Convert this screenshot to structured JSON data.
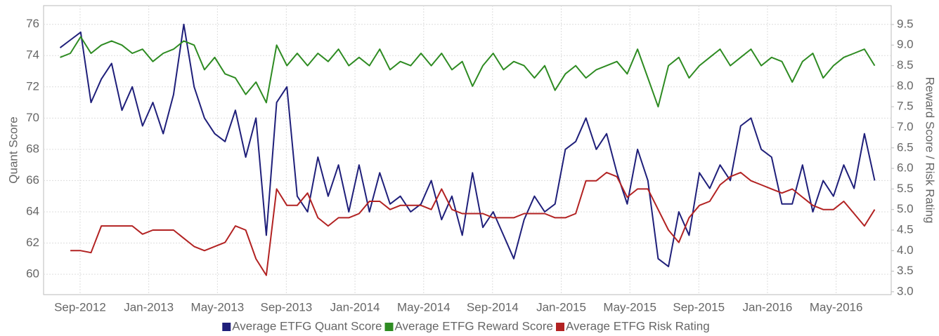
{
  "chart_data": {
    "type": "line",
    "y_label": "Quant Score",
    "y2_label": "Reward Score / Risk Rating",
    "xlim": [
      2012.49,
      2016.6
    ],
    "xticks": [
      {
        "value": 2012.667,
        "label": "Sep-2012"
      },
      {
        "value": 2013.0,
        "label": "Jan-2013"
      },
      {
        "value": 2013.333,
        "label": "May-2013"
      },
      {
        "value": 2013.667,
        "label": "Sep-2013"
      },
      {
        "value": 2014.0,
        "label": "Jan-2014"
      },
      {
        "value": 2014.333,
        "label": "May-2014"
      },
      {
        "value": 2014.667,
        "label": "Sep-2014"
      },
      {
        "value": 2015.0,
        "label": "Jan-2015"
      },
      {
        "value": 2015.333,
        "label": "May-2015"
      },
      {
        "value": 2015.667,
        "label": "Sep-2015"
      },
      {
        "value": 2016.0,
        "label": "Jan-2016"
      },
      {
        "value": 2016.333,
        "label": "May-2016"
      }
    ],
    "ylim": [
      58.7,
      77.2
    ],
    "yticks": [
      60,
      62,
      64,
      66,
      68,
      70,
      72,
      74,
      76
    ],
    "y2lim": [
      2.93,
      9.96
    ],
    "y2ticks": [
      {
        "value": 3,
        "label": "3.0"
      },
      3.5,
      {
        "value": 4,
        "label": "4.0"
      },
      4.5,
      {
        "value": 5,
        "label": "5.0"
      },
      5.5,
      {
        "value": 6,
        "label": "6.0"
      },
      6.5,
      {
        "value": 7,
        "label": "7.0"
      },
      7.5,
      {
        "value": 8,
        "label": "8.0"
      },
      8.5,
      {
        "value": 9,
        "label": "9.0"
      },
      9.5
    ],
    "grid": true,
    "legend": "bottom",
    "x": [
      2012.57,
      2012.62,
      2012.67,
      2012.72,
      2012.77,
      2012.82,
      2012.87,
      2012.92,
      2012.97,
      2013.02,
      2013.07,
      2013.12,
      2013.17,
      2013.22,
      2013.27,
      2013.32,
      2013.37,
      2013.42,
      2013.47,
      2013.52,
      2013.57,
      2013.62,
      2013.67,
      2013.72,
      2013.77,
      2013.82,
      2013.87,
      2013.92,
      2013.97,
      2014.02,
      2014.07,
      2014.12,
      2014.17,
      2014.22,
      2014.27,
      2014.32,
      2014.37,
      2014.42,
      2014.47,
      2014.52,
      2014.57,
      2014.62,
      2014.67,
      2014.72,
      2014.77,
      2014.82,
      2014.87,
      2014.92,
      2014.97,
      2015.02,
      2015.07,
      2015.12,
      2015.17,
      2015.22,
      2015.27,
      2015.32,
      2015.37,
      2015.42,
      2015.47,
      2015.52,
      2015.57,
      2015.62,
      2015.67,
      2015.72,
      2015.77,
      2015.82,
      2015.87,
      2015.92,
      2015.97,
      2016.02,
      2016.07,
      2016.12,
      2016.17,
      2016.22,
      2016.27,
      2016.32,
      2016.37,
      2016.42,
      2016.47,
      2016.52
    ],
    "series": [
      {
        "name": "Average ETFG Quant Score",
        "color": "#1f1f7a",
        "axis": "y",
        "values": [
          74.5,
          75,
          75.5,
          71,
          72.5,
          73.5,
          70.5,
          72,
          69.5,
          71,
          69,
          71.5,
          76,
          72,
          70,
          69,
          68.5,
          70.5,
          67.5,
          70,
          62.5,
          71,
          72,
          65,
          64,
          67.5,
          65,
          67,
          64,
          67,
          64,
          66.5,
          64.5,
          65,
          64,
          64.5,
          66,
          63.5,
          65,
          62.5,
          66.5,
          63,
          64,
          62.5,
          61,
          63.5,
          65,
          64,
          64.5,
          68,
          68.5,
          70,
          68,
          69,
          66.5,
          64.5,
          68,
          66,
          61,
          60.5,
          64,
          62.5,
          66.5,
          65.5,
          67,
          66,
          69.5,
          70,
          68,
          67.5,
          64.5,
          64.5,
          67,
          64,
          66,
          65,
          67,
          65.5,
          69,
          66
        ]
      },
      {
        "name": "Average ETFG Reward Score",
        "color": "#2e8b22",
        "axis": "y2",
        "values": [
          8.7,
          8.8,
          9.2,
          8.8,
          9.0,
          9.1,
          9.0,
          8.8,
          8.9,
          8.6,
          8.8,
          8.9,
          9.1,
          9.0,
          8.4,
          8.7,
          8.3,
          8.2,
          7.8,
          8.1,
          7.6,
          9.0,
          8.5,
          8.8,
          8.5,
          8.8,
          8.6,
          8.9,
          8.5,
          8.7,
          8.5,
          8.9,
          8.4,
          8.6,
          8.5,
          8.8,
          8.5,
          8.8,
          8.4,
          8.6,
          8.0,
          8.5,
          8.8,
          8.4,
          8.6,
          8.5,
          8.2,
          8.5,
          7.9,
          8.3,
          8.5,
          8.2,
          8.4,
          8.5,
          8.6,
          8.3,
          8.9,
          8.2,
          7.5,
          8.5,
          8.7,
          8.2,
          8.5,
          8.7,
          8.9,
          8.5,
          8.7,
          8.9,
          8.5,
          8.7,
          8.6,
          8.1,
          8.6,
          8.8,
          8.2,
          8.5,
          8.7,
          8.8,
          8.9,
          8.5
        ]
      },
      {
        "name": "Average ETFG Risk Rating",
        "color": "#b22222",
        "axis": "y2",
        "values": [
          null,
          4.0,
          4.0,
          3.95,
          4.6,
          4.6,
          4.6,
          4.6,
          4.4,
          4.5,
          4.5,
          4.5,
          4.3,
          4.1,
          4.0,
          4.1,
          4.2,
          4.6,
          4.5,
          3.8,
          3.4,
          5.5,
          5.1,
          5.1,
          5.4,
          4.8,
          4.6,
          4.8,
          4.8,
          4.9,
          5.2,
          5.2,
          5.0,
          5.1,
          5.1,
          5.1,
          5.0,
          5.5,
          5.0,
          4.9,
          4.9,
          4.9,
          4.8,
          4.8,
          4.8,
          4.9,
          4.9,
          4.9,
          4.8,
          4.8,
          4.9,
          5.7,
          5.7,
          5.9,
          5.8,
          5.3,
          5.5,
          5.5,
          5.0,
          4.5,
          4.2,
          4.8,
          5.1,
          5.2,
          5.6,
          5.8,
          5.9,
          5.7,
          5.6,
          5.5,
          5.4,
          5.5,
          5.3,
          5.1,
          5.0,
          5.0,
          5.2,
          4.9,
          4.6,
          5.0
        ]
      }
    ]
  }
}
